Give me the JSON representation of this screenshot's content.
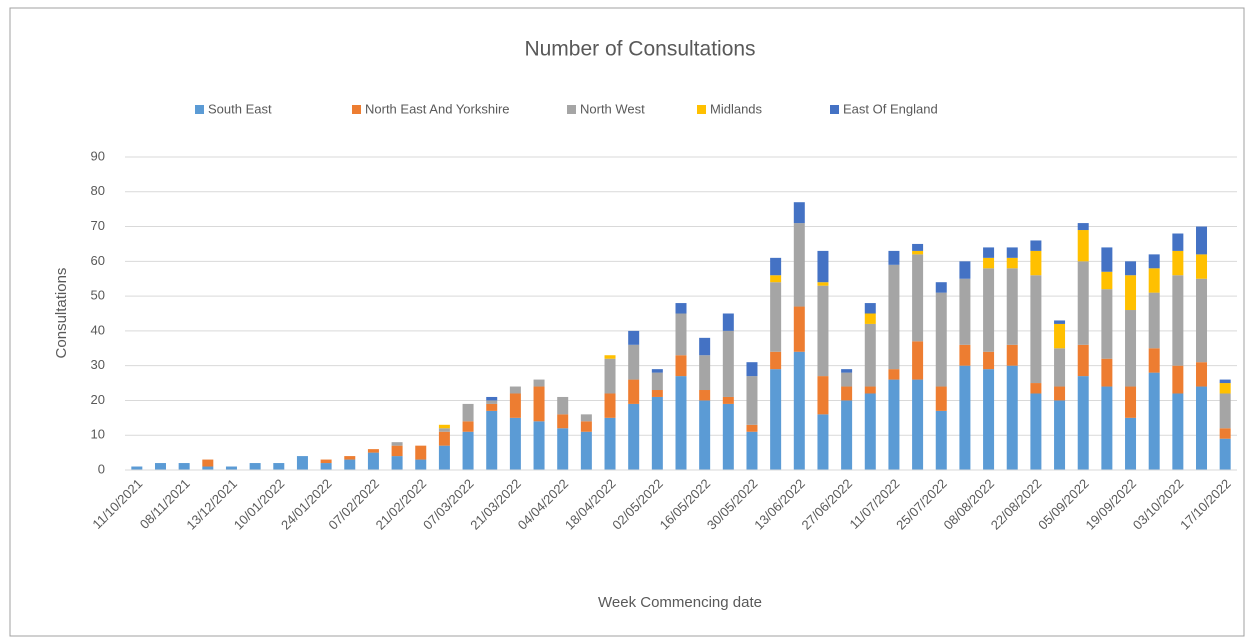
{
  "chart_data": {
    "type": "stacked_bar",
    "title": "Number of Consultations",
    "x_label": "Week Commencing date",
    "y_label": "Consultations",
    "categories": [
      "11/10/2021",
      null,
      "08/11/2021",
      null,
      "13/12/2021",
      null,
      "10/01/2022",
      null,
      "24/01/2022",
      null,
      "07/02/2022",
      null,
      "21/02/2022",
      null,
      "07/03/2022",
      null,
      "21/03/2022",
      null,
      "04/04/2022",
      null,
      "18/04/2022",
      null,
      "02/05/2022",
      null,
      "16/05/2022",
      null,
      "30/05/2022",
      null,
      "13/06/2022",
      null,
      "27/06/2022",
      null,
      "11/07/2022",
      null,
      "25/07/2022",
      null,
      "08/08/2022",
      null,
      "22/08/2022",
      null,
      "05/09/2022",
      null,
      "19/09/2022",
      null,
      "03/10/2022",
      null,
      "17/10/2022"
    ],
    "series": [
      {
        "name": "South East",
        "color": "#5b9bd5",
        "values": [
          1,
          2,
          2,
          1,
          1,
          2,
          2,
          4,
          2,
          3,
          5,
          4,
          3,
          7,
          11,
          17,
          15,
          14,
          12,
          11,
          15,
          19,
          21,
          27,
          20,
          19,
          11,
          29,
          34,
          16,
          20,
          22,
          26,
          26,
          17,
          30,
          29,
          30,
          22,
          20,
          27,
          24,
          15,
          28,
          22,
          24,
          9
        ]
      },
      {
        "name": "North East And Yorkshire",
        "color": "#ed7d31",
        "values": [
          0,
          0,
          0,
          2,
          0,
          0,
          0,
          0,
          1,
          1,
          1,
          3,
          4,
          4,
          3,
          2,
          7,
          10,
          4,
          3,
          7,
          7,
          2,
          6,
          3,
          2,
          2,
          5,
          13,
          11,
          4,
          2,
          3,
          11,
          7,
          6,
          5,
          6,
          3,
          4,
          9,
          8,
          9,
          7,
          8,
          7,
          3
        ]
      },
      {
        "name": "North West",
        "color": "#a5a5a5",
        "values": [
          0,
          0,
          0,
          0,
          0,
          0,
          0,
          0,
          0,
          0,
          0,
          1,
          0,
          1,
          5,
          1,
          2,
          2,
          5,
          2,
          10,
          10,
          5,
          12,
          10,
          19,
          14,
          20,
          24,
          26,
          4,
          18,
          30,
          25,
          27,
          19,
          24,
          22,
          31,
          11,
          24,
          20,
          22,
          16,
          26,
          24,
          10
        ]
      },
      {
        "name": "Midlands",
        "color": "#ffc000",
        "values": [
          0,
          0,
          0,
          0,
          0,
          0,
          0,
          0,
          0,
          0,
          0,
          0,
          0,
          1,
          0,
          0,
          0,
          0,
          0,
          0,
          1,
          0,
          0,
          0,
          0,
          0,
          0,
          2,
          0,
          1,
          0,
          3,
          0,
          1,
          0,
          0,
          3,
          3,
          7,
          7,
          9,
          5,
          10,
          7,
          7,
          7,
          3
        ]
      },
      {
        "name": "East Of England",
        "color": "#4472c4",
        "values": [
          0,
          0,
          0,
          0,
          0,
          0,
          0,
          0,
          0,
          0,
          0,
          0,
          0,
          0,
          0,
          1,
          0,
          0,
          0,
          0,
          0,
          4,
          1,
          3,
          5,
          5,
          4,
          5,
          6,
          9,
          1,
          3,
          4,
          2,
          3,
          5,
          3,
          3,
          3,
          1,
          2,
          7,
          4,
          4,
          5,
          8,
          1
        ]
      }
    ],
    "ylim": [
      0,
      90
    ],
    "yticks": [
      0,
      10,
      20,
      30,
      40,
      50,
      60,
      70,
      80,
      90
    ],
    "grid": true,
    "legend": "top"
  }
}
